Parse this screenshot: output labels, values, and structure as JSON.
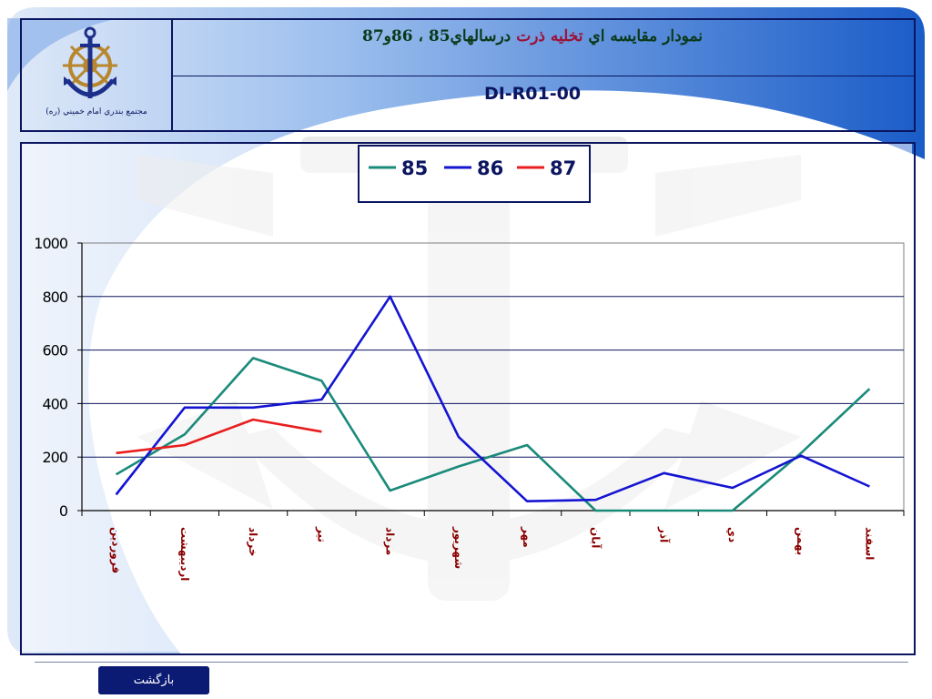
{
  "header": {
    "title_part1": "نمودار مقايسه اي",
    "title_part2": "تخليه ذرت",
    "title_part3": "درسالهاي85 ، 86و87",
    "code": "DI-R01-00",
    "org_name": "مجتمع بندري امام خميني (ره)"
  },
  "footer": {
    "back_label": "بازگشت"
  },
  "colors": {
    "s85": "#1a8a7a",
    "s86": "#1414d2",
    "s87": "#e81d1d",
    "frame": "#0b1560",
    "month_label": "#8b0000"
  },
  "icons": {
    "logo": "anchor-ship-wheel-logo"
  },
  "chart_data": {
    "type": "line",
    "categories": [
      "فروردين",
      "ارديبهشت",
      "خرداد",
      "تير",
      "مرداد",
      "شهريور",
      "مهر",
      "آبان",
      "آذر",
      "دي",
      "بهمن",
      "اسفند"
    ],
    "series": [
      {
        "name": "85",
        "values": [
          135,
          285,
          570,
          485,
          75,
          165,
          245,
          0,
          0,
          0,
          215,
          455
        ]
      },
      {
        "name": "86",
        "values": [
          60,
          385,
          385,
          415,
          800,
          275,
          35,
          40,
          140,
          85,
          205,
          90
        ]
      },
      {
        "name": "87",
        "values": [
          215,
          245,
          340,
          295,
          null,
          null,
          null,
          null,
          null,
          null,
          null,
          null
        ]
      }
    ],
    "ylim": [
      0,
      1000
    ],
    "yticks": [
      0,
      200,
      400,
      600,
      800,
      1000
    ],
    "ytick_labels": [
      "0",
      "200",
      "400",
      "600",
      "800",
      "1000"
    ],
    "grid": true,
    "legend_position": "top-center"
  }
}
